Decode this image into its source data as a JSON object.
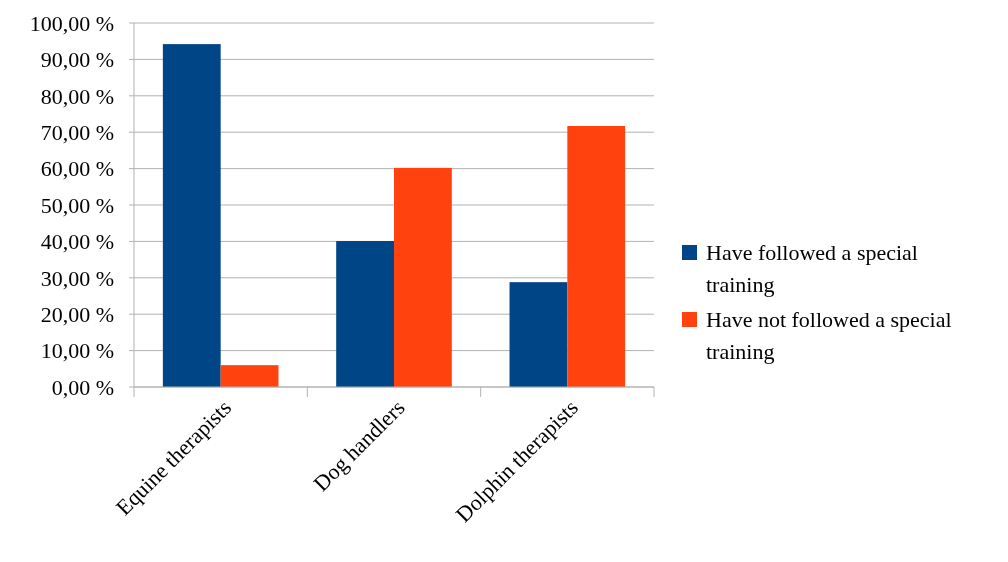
{
  "chart_data": {
    "type": "bar",
    "categories": [
      "Equine therapists",
      "Dog handlers",
      "Dolphin therapists"
    ],
    "series": [
      {
        "name": "Have followed a special training",
        "color": "#004586",
        "values": [
          94.2,
          40.1,
          28.8
        ]
      },
      {
        "name": "Have not followed a special training",
        "color": "#ff420e",
        "values": [
          6.0,
          60.2,
          71.7
        ]
      }
    ],
    "ylim": [
      0,
      100
    ],
    "yticks": [
      {
        "value": 0,
        "label": "0,00 %"
      },
      {
        "value": 10,
        "label": "10,00 %"
      },
      {
        "value": 20,
        "label": "20,00 %"
      },
      {
        "value": 30,
        "label": "30,00 %"
      },
      {
        "value": 40,
        "label": "40,00 %"
      },
      {
        "value": 50,
        "label": "50,00 %"
      },
      {
        "value": 60,
        "label": "60,00 %"
      },
      {
        "value": 70,
        "label": "70,00 %"
      },
      {
        "value": 80,
        "label": "80,00 %"
      },
      {
        "value": 90,
        "label": "90,00 %"
      },
      {
        "value": 100,
        "label": "100,00 %"
      }
    ],
    "grid": "y",
    "legend": "right"
  }
}
